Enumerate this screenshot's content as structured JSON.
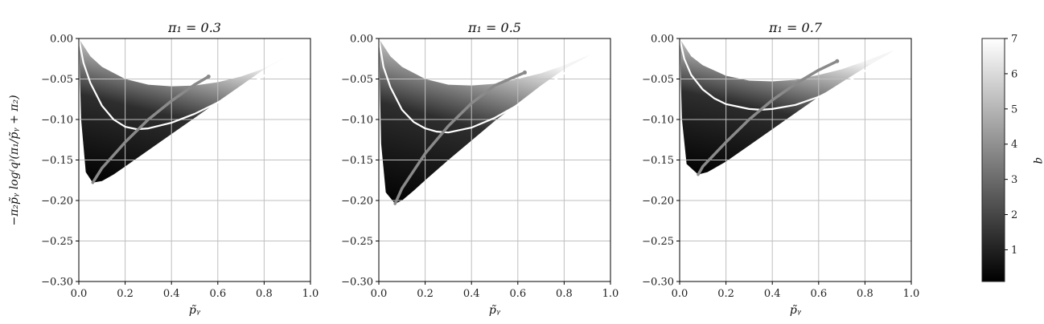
{
  "chart_data": {
    "type": "area",
    "ylabel": "−π₂p̃ᵧ log⁽q⁾(π₁/p̃ᵧ + π₂)",
    "panels": [
      {
        "title": "π₁ = 0.3",
        "xlabel": "p̃ᵧ",
        "xlim": [
          0.0,
          1.0
        ],
        "ylim": [
          -0.3,
          0.0
        ],
        "xticks": [
          "0.0",
          "0.2",
          "0.4",
          "0.6",
          "0.8",
          "1.0"
        ],
        "yticks": [
          "0.00",
          "−0.05",
          "−0.10",
          "−0.15",
          "−0.20",
          "−0.25",
          "−0.30"
        ],
        "region_lower": {
          "x": [
            0.0,
            0.01,
            0.03,
            0.06,
            0.1,
            0.15,
            0.2,
            0.3,
            0.4,
            0.5,
            0.6,
            0.7,
            0.8,
            0.9
          ],
          "y": [
            0.0,
            -0.1,
            -0.165,
            -0.178,
            -0.176,
            -0.168,
            -0.158,
            -0.138,
            -0.118,
            -0.098,
            -0.078,
            -0.058,
            -0.038,
            -0.022
          ]
        },
        "region_upper": {
          "x": [
            0.0,
            0.05,
            0.1,
            0.2,
            0.3,
            0.4,
            0.5,
            0.6,
            0.7,
            0.8,
            0.9
          ],
          "y": [
            0.0,
            -0.022,
            -0.035,
            -0.05,
            -0.057,
            -0.059,
            -0.058,
            -0.054,
            -0.047,
            -0.037,
            -0.022
          ]
        },
        "curve_q1": {
          "x": [
            0.0,
            0.02,
            0.05,
            0.1,
            0.15,
            0.2,
            0.25,
            0.3,
            0.4,
            0.5,
            0.6,
            0.7,
            0.8,
            0.9
          ],
          "y": [
            0.0,
            -0.03,
            -0.055,
            -0.083,
            -0.1,
            -0.109,
            -0.112,
            -0.111,
            -0.104,
            -0.093,
            -0.079,
            -0.063,
            -0.046,
            -0.024
          ]
        },
        "curve_optimum": {
          "x": [
            0.06,
            0.1,
            0.2,
            0.3,
            0.4,
            0.5,
            0.56
          ],
          "y": [
            -0.178,
            -0.16,
            -0.128,
            -0.1,
            -0.077,
            -0.057,
            -0.047
          ]
        }
      },
      {
        "title": "π₁ = 0.5",
        "xlabel": "p̃ᵧ",
        "xlim": [
          0.0,
          1.0
        ],
        "ylim": [
          -0.3,
          0.0
        ],
        "xticks": [
          "0.0",
          "0.2",
          "0.4",
          "0.6",
          "0.8",
          "1.0"
        ],
        "yticks": [
          "0.00",
          "−0.05",
          "−0.10",
          "−0.15",
          "−0.20",
          "−0.25",
          "−0.30"
        ],
        "region_lower": {
          "x": [
            0.0,
            0.01,
            0.03,
            0.07,
            0.1,
            0.15,
            0.2,
            0.3,
            0.4,
            0.5,
            0.6,
            0.7,
            0.8,
            0.93
          ],
          "y": [
            0.0,
            -0.13,
            -0.19,
            -0.204,
            -0.2,
            -0.188,
            -0.175,
            -0.15,
            -0.126,
            -0.102,
            -0.08,
            -0.058,
            -0.038,
            -0.018
          ]
        },
        "region_upper": {
          "x": [
            0.0,
            0.05,
            0.1,
            0.2,
            0.3,
            0.4,
            0.5,
            0.6,
            0.7,
            0.8,
            0.93
          ],
          "y": [
            0.0,
            -0.022,
            -0.035,
            -0.05,
            -0.057,
            -0.058,
            -0.056,
            -0.05,
            -0.043,
            -0.033,
            -0.018
          ]
        },
        "curve_q1": {
          "x": [
            0.0,
            0.02,
            0.05,
            0.1,
            0.15,
            0.2,
            0.25,
            0.3,
            0.4,
            0.5,
            0.6,
            0.7,
            0.8,
            0.93
          ],
          "y": [
            0.0,
            -0.035,
            -0.06,
            -0.088,
            -0.103,
            -0.111,
            -0.115,
            -0.116,
            -0.11,
            -0.098,
            -0.082,
            -0.063,
            -0.043,
            -0.018
          ]
        },
        "curve_optimum": {
          "x": [
            0.07,
            0.1,
            0.2,
            0.3,
            0.4,
            0.5,
            0.63
          ],
          "y": [
            -0.204,
            -0.185,
            -0.142,
            -0.108,
            -0.08,
            -0.058,
            -0.042
          ]
        }
      },
      {
        "title": "π₁ = 0.7",
        "xlabel": "p̃ᵧ",
        "xlim": [
          0.0,
          1.0
        ],
        "ylim": [
          -0.3,
          0.0
        ],
        "xticks": [
          "0.0",
          "0.2",
          "0.4",
          "0.6",
          "0.8",
          "1.0"
        ],
        "yticks": [
          "0.00",
          "−0.05",
          "−0.10",
          "−0.15",
          "−0.20",
          "−0.25",
          "−0.30"
        ],
        "region_lower": {
          "x": [
            0.0,
            0.01,
            0.03,
            0.08,
            0.12,
            0.2,
            0.3,
            0.4,
            0.5,
            0.6,
            0.7,
            0.8,
            0.94
          ],
          "y": [
            0.0,
            -0.1,
            -0.155,
            -0.168,
            -0.165,
            -0.152,
            -0.132,
            -0.112,
            -0.092,
            -0.072,
            -0.054,
            -0.036,
            -0.013
          ]
        },
        "region_upper": {
          "x": [
            0.0,
            0.05,
            0.1,
            0.2,
            0.3,
            0.4,
            0.5,
            0.6,
            0.7,
            0.8,
            0.94
          ],
          "y": [
            0.0,
            -0.022,
            -0.033,
            -0.046,
            -0.052,
            -0.053,
            -0.051,
            -0.045,
            -0.038,
            -0.028,
            -0.013
          ]
        },
        "curve_q1": {
          "x": [
            0.0,
            0.02,
            0.05,
            0.1,
            0.15,
            0.2,
            0.3,
            0.35,
            0.4,
            0.5,
            0.6,
            0.7,
            0.8,
            0.94
          ],
          "y": [
            0.0,
            -0.025,
            -0.045,
            -0.063,
            -0.074,
            -0.081,
            -0.087,
            -0.088,
            -0.087,
            -0.082,
            -0.072,
            -0.058,
            -0.04,
            -0.013
          ]
        },
        "curve_optimum": {
          "x": [
            0.08,
            0.1,
            0.2,
            0.3,
            0.4,
            0.5,
            0.6,
            0.68
          ],
          "y": [
            -0.168,
            -0.158,
            -0.128,
            -0.1,
            -0.076,
            -0.056,
            -0.039,
            -0.028
          ]
        }
      }
    ],
    "colorbar": {
      "label": "q",
      "ticks": [
        "1",
        "2",
        "3",
        "4",
        "5",
        "6",
        "7"
      ],
      "range": [
        0.1,
        7.0
      ],
      "colormap": "gray"
    },
    "grid": true
  },
  "colors": {
    "q1_curve": "#ffffff",
    "optimum_curve": "#8a8a8a",
    "grid": "#bfbfbf",
    "dark": "#000000",
    "light": "#f4f4f4"
  }
}
